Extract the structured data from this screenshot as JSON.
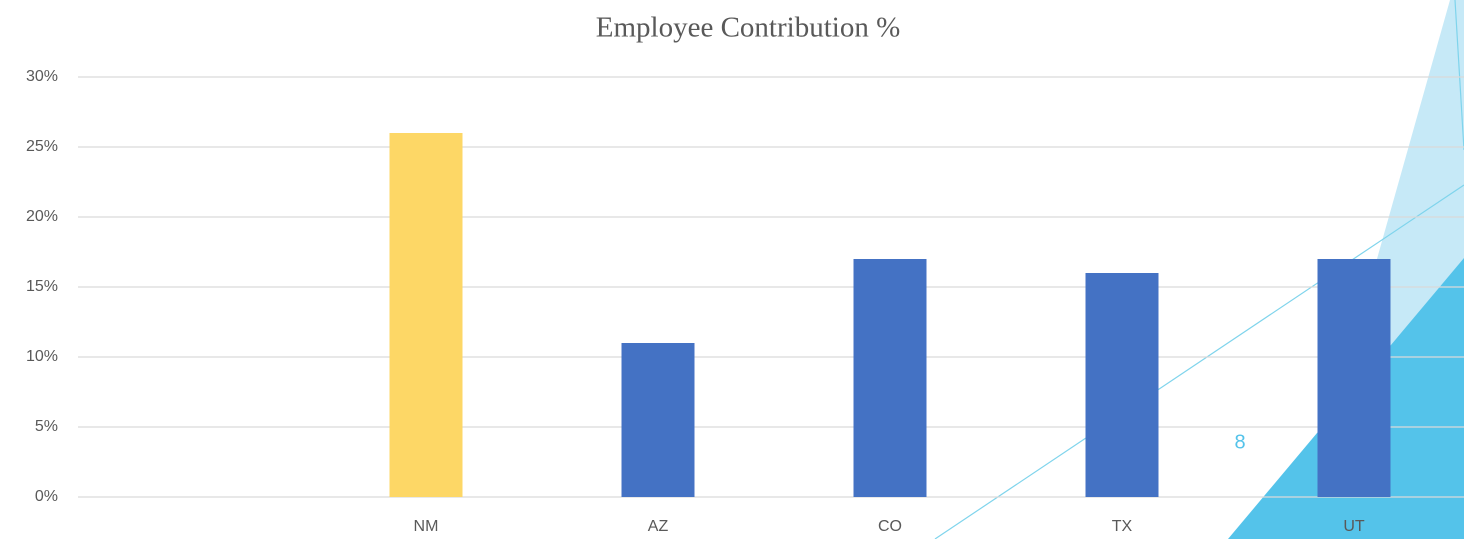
{
  "chart_data": {
    "type": "bar",
    "title": "Employee Contribution %",
    "categories": [
      null,
      "NM",
      "AZ",
      "CO",
      "TX",
      "UT"
    ],
    "values": [
      null,
      26,
      11,
      17,
      16,
      17
    ],
    "colors": [
      "#4472c4",
      "#fdd766",
      "#4472c4",
      "#4472c4",
      "#4472c4",
      "#4472c4"
    ],
    "ylim": [
      0,
      30
    ],
    "yticks": [
      {
        "value": 0,
        "label": "0%"
      },
      {
        "value": 5,
        "label": "5%"
      },
      {
        "value": 10,
        "label": "10%"
      },
      {
        "value": 15,
        "label": "15%"
      },
      {
        "value": 20,
        "label": "20%"
      },
      {
        "value": 25,
        "label": "25%"
      },
      {
        "value": 30,
        "label": "30%"
      }
    ],
    "grid": true
  },
  "page_number": "8"
}
